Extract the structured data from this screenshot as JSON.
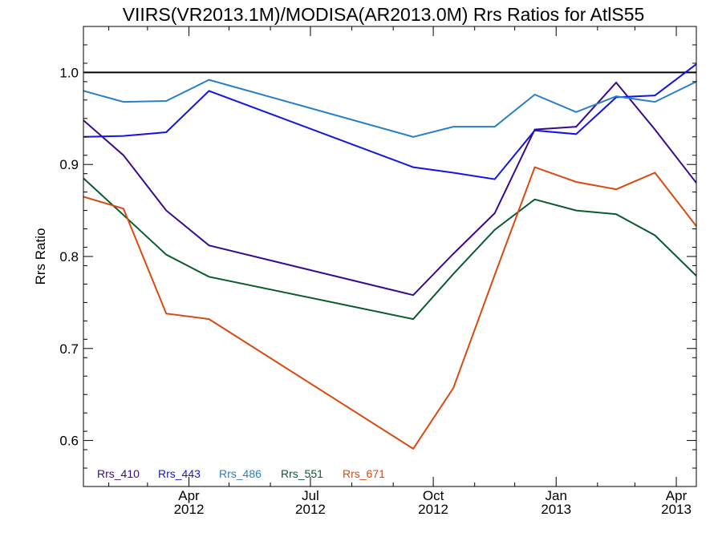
{
  "chart_data": {
    "type": "line",
    "title": "VIIRS(VR2013.1M)/MODISA(AR2013.0M)  Rrs Ratios for AtlS55",
    "xlabel": "",
    "ylabel": "Rrs Ratio",
    "xlim": [
      "2012-01-13",
      "2013-04-16"
    ],
    "ylim": [
      0.55,
      1.05
    ],
    "yticks": [
      {
        "value": 0.6,
        "label": "0.6"
      },
      {
        "value": 0.7,
        "label": "0.7"
      },
      {
        "value": 0.8,
        "label": "0.8"
      },
      {
        "value": 0.9,
        "label": "0.9"
      },
      {
        "value": 1.0,
        "label": "1.0"
      }
    ],
    "xticks": [
      {
        "date": "2012-04-01",
        "month": "Apr",
        "year": "2012"
      },
      {
        "date": "2012-07-01",
        "month": "Jul",
        "year": "2012"
      },
      {
        "date": "2012-10-01",
        "month": "Oct",
        "year": "2012"
      },
      {
        "date": "2013-01-01",
        "month": "Jan",
        "year": "2013"
      },
      {
        "date": "2013-04-01",
        "month": "Apr",
        "year": "2013"
      }
    ],
    "reference_line": 1.0,
    "grid": false,
    "legend": "bottom-left",
    "x": [
      "2012-01-13",
      "2012-02-12",
      "2012-03-15",
      "2012-04-16",
      "2012-09-16",
      "2012-10-16",
      "2012-11-16",
      "2012-12-16",
      "2013-01-16",
      "2013-02-15",
      "2013-03-16",
      "2013-04-16"
    ],
    "series": [
      {
        "name": "Rrs_410",
        "color": "#3a0a8c",
        "values": [
          0.948,
          0.91,
          0.85,
          0.812,
          0.758,
          0.803,
          0.847,
          0.938,
          0.941,
          0.989,
          0.938,
          0.88
        ]
      },
      {
        "name": "Rrs_443",
        "color": "#1414e6",
        "values": [
          0.93,
          0.931,
          0.935,
          0.98,
          0.897,
          0.891,
          0.884,
          0.937,
          0.933,
          0.973,
          0.975,
          1.009
        ]
      },
      {
        "name": "Rrs_486",
        "color": "#2a7fc4",
        "values": [
          0.98,
          0.968,
          0.969,
          0.992,
          0.93,
          0.941,
          0.941,
          0.976,
          0.957,
          0.974,
          0.968,
          0.99
        ]
      },
      {
        "name": "Rrs_551",
        "color": "#0b5a32",
        "values": [
          0.885,
          0.845,
          0.802,
          0.778,
          0.732,
          0.781,
          0.829,
          0.862,
          0.85,
          0.846,
          0.823,
          0.779
        ]
      },
      {
        "name": "Rrs_671",
        "color": "#d94a0f",
        "values": [
          0.865,
          0.852,
          0.738,
          0.732,
          0.591,
          0.657,
          0.78,
          0.897,
          0.881,
          0.873,
          0.891,
          0.833
        ]
      }
    ]
  }
}
